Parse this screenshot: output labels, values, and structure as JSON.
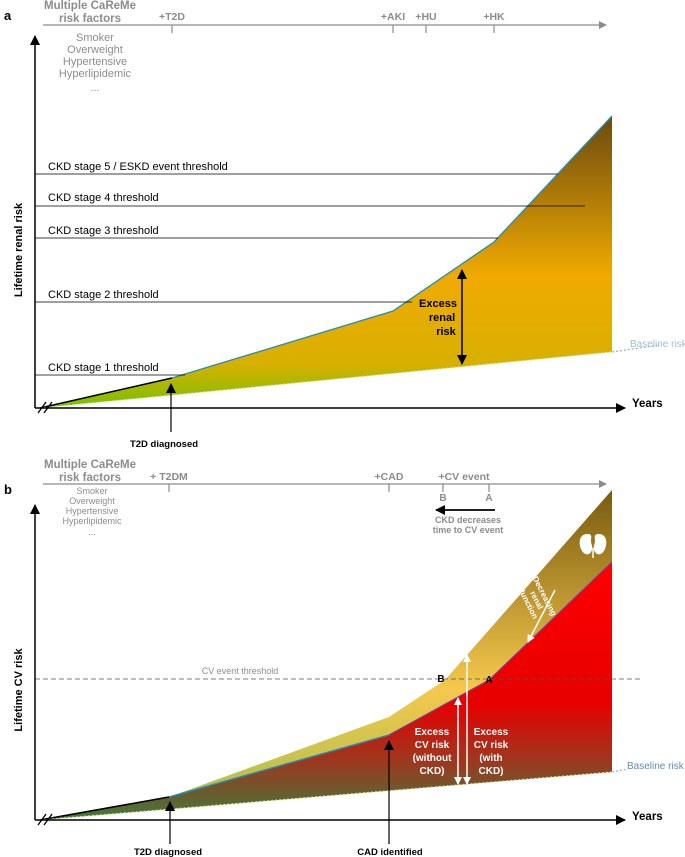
{
  "panel_a": {
    "letter": "a",
    "risk_factors_title_1": "Multiple CaReMe",
    "risk_factors_title_2": "risk factors",
    "risk_factors": [
      "Smoker",
      "Overweight",
      "Hypertensive",
      "Hyperlipidemic",
      "..."
    ],
    "events": [
      "+T2D",
      "+AKI",
      "+HU",
      "+HK"
    ],
    "thresholds": [
      "CKD stage 5 / ESKD event threshold",
      "CKD stage 4 threshold",
      "CKD stage 3 threshold",
      "CKD stage 2 threshold",
      "CKD stage 1 threshold"
    ],
    "excess_label": [
      "Excess",
      "renal",
      "risk"
    ],
    "baseline_label": "Baseline risk",
    "y_axis_label": "Lifetime renal risk",
    "x_axis_label": "Years",
    "diagnosis_label": "T2D diagnosed"
  },
  "panel_b": {
    "letter": "b",
    "risk_factors_title_1": "Multiple CaReMe",
    "risk_factors_title_2": "risk factors",
    "risk_factors": [
      "Smoker",
      "Overweight",
      "Hypertensive",
      "Hyperlipidemic",
      "..."
    ],
    "events": [
      "+ T2DM",
      "+CAD",
      "+CV event"
    ],
    "marker_b": "B",
    "marker_a": "A",
    "ckd_note_1": "CKD decreases",
    "ckd_note_2": "time to CV event",
    "threshold_label": "CV event threshold",
    "decreasing_label": [
      "Decreasing",
      "renal",
      "function"
    ],
    "excess_without": [
      "Excess",
      "CV risk",
      "(without",
      "CKD)"
    ],
    "excess_with": [
      "Excess",
      "CV risk",
      "(with",
      "CKD)"
    ],
    "point_b": "B",
    "point_a": "A",
    "baseline_label": "Baseline risk",
    "y_axis_label": "Lifetime CV risk",
    "x_axis_label": "Years",
    "diagnosis_label": "T2D diagnosed",
    "cad_label": "CAD identified"
  },
  "colors": {
    "timeline": "#8c8c8c",
    "baseline": "#8fb2c9",
    "renal_top": "#6b4a10",
    "renal_mid": "#f0aa00",
    "renal_bottom": "#76c000",
    "cv_red": "#ff0000",
    "cv_green": "#3f7a3a",
    "gold_top": "#7a5b10",
    "gold_bottom": "#f5c84c"
  }
}
